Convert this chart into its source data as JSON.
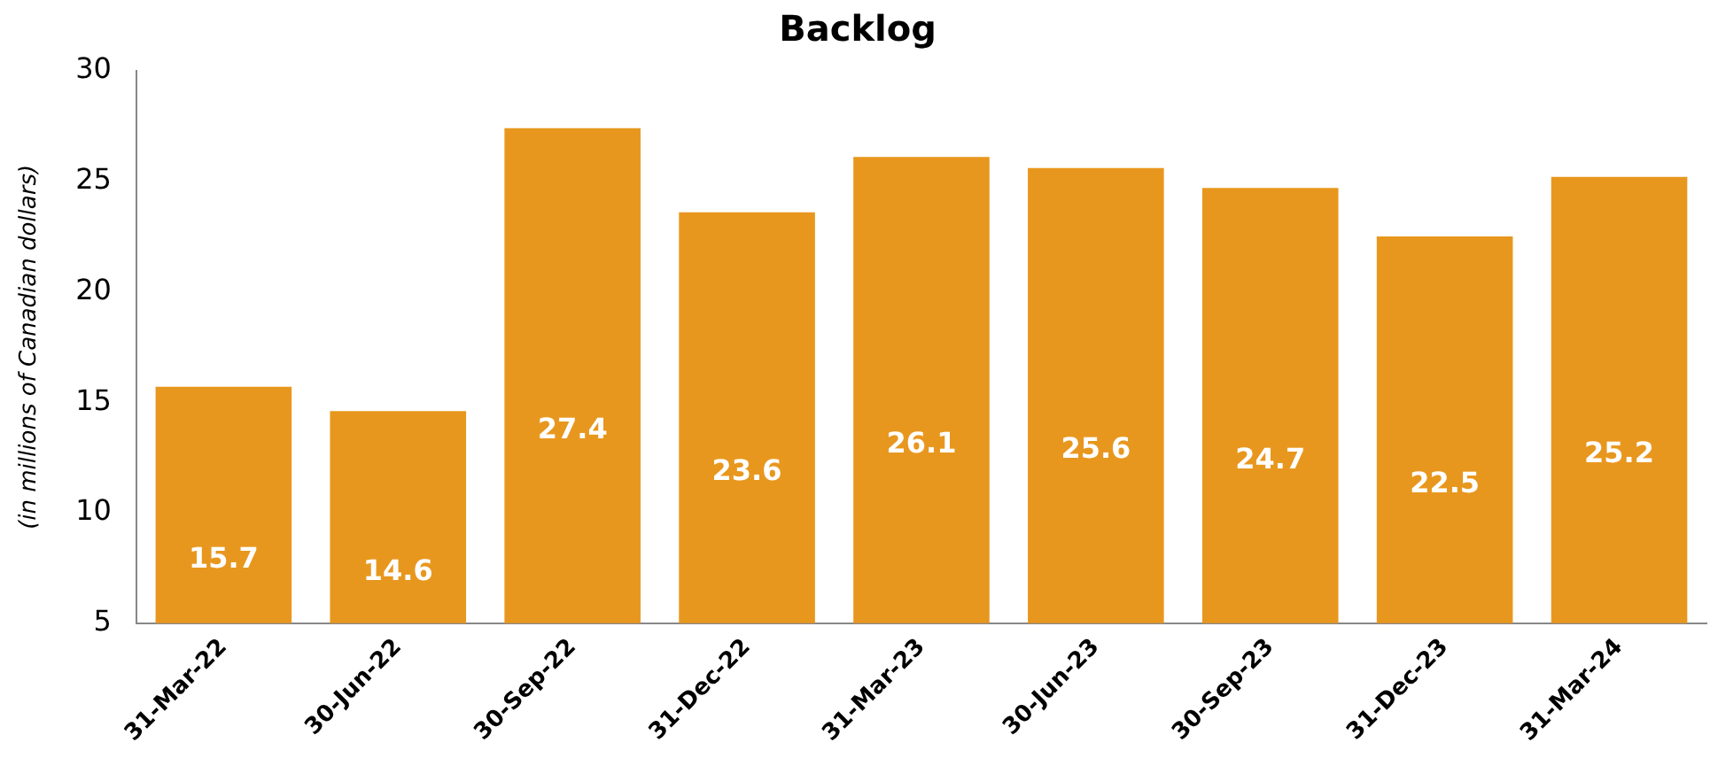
{
  "chart_data": {
    "type": "bar",
    "title": "Backlog",
    "ylabel": "(in millions of Canadian dollars)",
    "categories": [
      "31-Mar-22",
      "30-Jun-22",
      "30-Sep-22",
      "31-Dec-22",
      "31-Mar-23",
      "30-Jun-23",
      "30-Sep-23",
      "31-Dec-23",
      "31-Mar-24"
    ],
    "values": [
      15.7,
      14.6,
      27.4,
      23.6,
      26.1,
      25.6,
      24.7,
      22.5,
      25.2
    ],
    "color": "#e8971e",
    "ylim": [
      5,
      30
    ],
    "yticks": [
      5,
      10,
      15,
      20,
      25,
      30
    ],
    "grid": false,
    "legend": false,
    "data_labels": true
  }
}
